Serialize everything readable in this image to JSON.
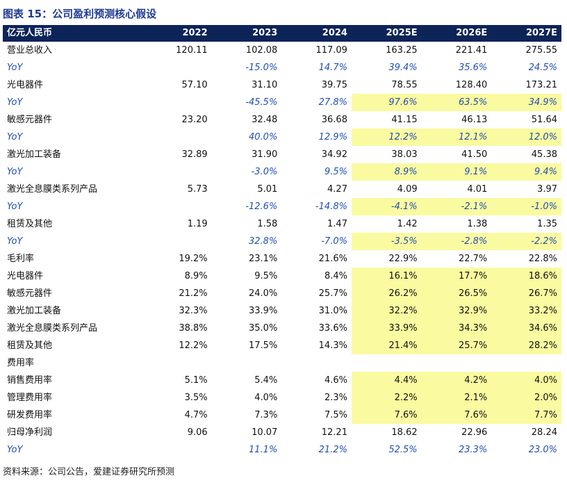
{
  "title": "图表 15：公司盈利预测核心假设",
  "header": {
    "label": "亿元人民币",
    "years": [
      "2022",
      "2023",
      "2024",
      "2025E",
      "2026E",
      "2027E"
    ]
  },
  "rows": [
    {
      "type": "section",
      "label": "营业总收入",
      "values": [
        "120.11",
        "102.08",
        "117.09",
        "163.25",
        "221.41",
        "275.55"
      ],
      "hl": false
    },
    {
      "type": "yoy",
      "label": "YoY",
      "values": [
        "",
        "-15.0%",
        "14.7%",
        "39.4%",
        "35.6%",
        "24.5%"
      ],
      "hl": false
    },
    {
      "type": "item",
      "label": "光电器件",
      "values": [
        "57.10",
        "31.10",
        "39.75",
        "78.55",
        "128.40",
        "173.21"
      ],
      "hl": false
    },
    {
      "type": "yoy",
      "label": "YoY",
      "values": [
        "",
        "-45.5%",
        "27.8%",
        "97.6%",
        "63.5%",
        "34.9%"
      ],
      "hl": true
    },
    {
      "type": "item",
      "label": "敏感元器件",
      "values": [
        "23.20",
        "32.48",
        "36.68",
        "41.15",
        "46.13",
        "51.64"
      ],
      "hl": false
    },
    {
      "type": "yoy",
      "label": "YoY",
      "values": [
        "",
        "40.0%",
        "12.9%",
        "12.2%",
        "12.1%",
        "12.0%"
      ],
      "hl": true
    },
    {
      "type": "item",
      "label": "激光加工装备",
      "values": [
        "32.89",
        "31.90",
        "34.92",
        "38.03",
        "41.50",
        "45.38"
      ],
      "hl": false
    },
    {
      "type": "yoy",
      "label": "YoY",
      "values": [
        "",
        "-3.0%",
        "9.5%",
        "8.9%",
        "9.1%",
        "9.4%"
      ],
      "hl": true
    },
    {
      "type": "item",
      "label": "激光全息膜类系列产品",
      "values": [
        "5.73",
        "5.01",
        "4.27",
        "4.09",
        "4.01",
        "3.97"
      ],
      "hl": false
    },
    {
      "type": "yoy",
      "label": "YoY",
      "values": [
        "",
        "-12.6%",
        "-14.8%",
        "-4.1%",
        "-2.1%",
        "-1.0%"
      ],
      "hl": true
    },
    {
      "type": "item",
      "label": "租赁及其他",
      "values": [
        "1.19",
        "1.58",
        "1.47",
        "1.42",
        "1.38",
        "1.35"
      ],
      "hl": false
    },
    {
      "type": "yoy",
      "label": "YoY",
      "values": [
        "",
        "32.8%",
        "-7.0%",
        "-3.5%",
        "-2.8%",
        "-2.2%"
      ],
      "hl": true
    },
    {
      "type": "section",
      "label": "毛利率",
      "values": [
        "19.2%",
        "23.1%",
        "21.6%",
        "22.9%",
        "22.7%",
        "22.8%"
      ],
      "hl": false
    },
    {
      "type": "item",
      "label": "光电器件",
      "values": [
        "8.9%",
        "9.5%",
        "8.4%",
        "16.1%",
        "17.7%",
        "18.6%"
      ],
      "hl": true
    },
    {
      "type": "item",
      "label": "敏感元器件",
      "values": [
        "21.2%",
        "24.0%",
        "25.7%",
        "26.2%",
        "26.5%",
        "26.7%"
      ],
      "hl": true
    },
    {
      "type": "item",
      "label": "激光加工装备",
      "values": [
        "32.3%",
        "33.9%",
        "31.0%",
        "32.2%",
        "32.9%",
        "33.2%"
      ],
      "hl": true
    },
    {
      "type": "item",
      "label": "激光全息膜类系列产品",
      "values": [
        "38.8%",
        "35.0%",
        "33.6%",
        "33.9%",
        "34.3%",
        "34.6%"
      ],
      "hl": true
    },
    {
      "type": "item",
      "label": "租赁及其他",
      "values": [
        "12.2%",
        "17.5%",
        "14.3%",
        "21.4%",
        "25.7%",
        "28.2%"
      ],
      "hl": true
    },
    {
      "type": "section",
      "label": "费用率",
      "values": [
        "",
        "",
        "",
        "",
        "",
        ""
      ],
      "hl": false
    },
    {
      "type": "item",
      "label": "销售费用率",
      "values": [
        "5.1%",
        "5.4%",
        "4.6%",
        "4.4%",
        "4.2%",
        "4.0%"
      ],
      "hl": true
    },
    {
      "type": "item",
      "label": "管理费用率",
      "values": [
        "3.5%",
        "4.0%",
        "2.3%",
        "2.2%",
        "2.1%",
        "2.0%"
      ],
      "hl": true
    },
    {
      "type": "item",
      "label": "研发费用率",
      "values": [
        "4.7%",
        "7.3%",
        "7.5%",
        "7.6%",
        "7.6%",
        "7.7%"
      ],
      "hl": true
    },
    {
      "type": "section",
      "label": "归母净利润",
      "values": [
        "9.06",
        "10.07",
        "12.21",
        "18.62",
        "22.96",
        "28.24"
      ],
      "hl": false
    },
    {
      "type": "yoy",
      "label": "YoY",
      "values": [
        "",
        "11.1%",
        "21.2%",
        "52.5%",
        "23.3%",
        "23.0%"
      ],
      "hl": false
    }
  ],
  "source": "资料来源：公司公告，爱建证券研究所预测"
}
